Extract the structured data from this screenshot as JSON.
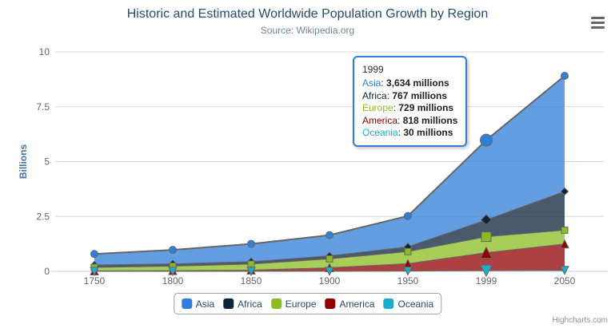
{
  "chart_data": {
    "type": "area",
    "stacking": "normal",
    "title": "Historic and Estimated Worldwide Population Growth by Region",
    "subtitle": "Source: Wikipedia.org",
    "categories": [
      "1750",
      "1800",
      "1850",
      "1900",
      "1950",
      "1999",
      "2050"
    ],
    "xlabel": "",
    "ylabel": "Billions",
    "ylim": [
      0,
      10
    ],
    "yticks": [
      0,
      2.5,
      5,
      7.5,
      10
    ],
    "grid": true,
    "legend_position": "bottom",
    "values_unit": "millions",
    "y_unit": "billions",
    "series": [
      {
        "name": "Asia",
        "color": "#2f7ed8",
        "marker": "circle",
        "values": [
          502,
          635,
          809,
          947,
          1402,
          3634,
          5268
        ]
      },
      {
        "name": "Africa",
        "color": "#0d233a",
        "marker": "diamond",
        "values": [
          106,
          107,
          111,
          133,
          221,
          767,
          1766
        ]
      },
      {
        "name": "Europe",
        "color": "#8bbc21",
        "marker": "square",
        "values": [
          163,
          203,
          276,
          408,
          547,
          729,
          628
        ]
      },
      {
        "name": "America",
        "color": "#910000",
        "marker": "triangle",
        "values": [
          18,
          31,
          54,
          156,
          339,
          818,
          1201
        ]
      },
      {
        "name": "Oceania",
        "color": "#1aadce",
        "marker": "triangle-down",
        "values": [
          2,
          2,
          2,
          6,
          13,
          30,
          46
        ]
      }
    ]
  },
  "tooltip": {
    "header": "1999",
    "hover_index": 5,
    "hover_series": "Asia",
    "border_color": "#2f7ed8",
    "rows": [
      {
        "label": "Asia",
        "color": "#2f7ed8",
        "value": "3,634 millions"
      },
      {
        "label": "Africa",
        "color": "#0d233a",
        "value": "767 millions"
      },
      {
        "label": "Europe",
        "color": "#8bbc21",
        "value": "729 millions"
      },
      {
        "label": "America",
        "color": "#910000",
        "value": "818 millions"
      },
      {
        "label": "Oceania",
        "color": "#1aadce",
        "value": "30 millions"
      }
    ]
  },
  "legend": {
    "items": [
      "Asia",
      "Africa",
      "Europe",
      "America",
      "Oceania"
    ]
  },
  "credits": "Highcharts.com",
  "style": {
    "title_color": "#274b6d",
    "subtitle_color": "#6d869f",
    "axis_label_color": "#666666",
    "y_title_color": "#4572A7",
    "grid_color": "#d8d8d8",
    "axis_line_color": "#c0d0e0",
    "outline_color": "#666666"
  }
}
